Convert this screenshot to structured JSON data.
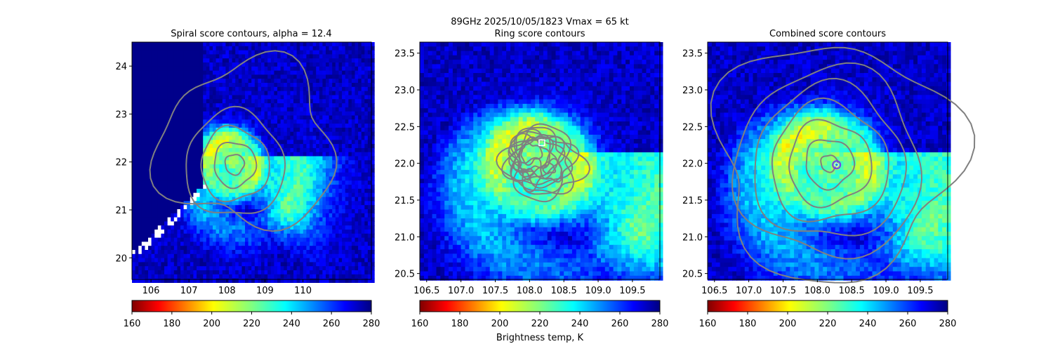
{
  "figure": {
    "suptitle_line1": "89GHz  2025/10/05/1823    Vmax = 65 kt",
    "colorbar_label": "Brightness temp, K"
  },
  "colors": {
    "contour": "#808080",
    "center_marker": "#7b3fe4",
    "center_inner": "#1f9bd8",
    "box_marker": "#ffffff"
  },
  "chart_data": [
    {
      "type": "heatmap",
      "title": "Spiral score contours, alpha = 12.4",
      "xlim": [
        105.5,
        111.8
      ],
      "ylim": [
        19.55,
        24.5
      ],
      "xticks": [
        106,
        107,
        108,
        109,
        110
      ],
      "yticks": [
        20,
        21,
        22,
        23,
        24
      ],
      "colorbar": {
        "cmap": "jet_r",
        "range": [
          160,
          280
        ],
        "ticks": [
          160,
          180,
          200,
          220,
          240,
          260,
          280
        ]
      },
      "storm_center": [
        108.15,
        21.95
      ],
      "contours": "spiral",
      "grid": false
    },
    {
      "type": "heatmap",
      "title": "Ring score contours",
      "xlim": [
        106.4,
        109.9
      ],
      "ylim": [
        20.42,
        23.65
      ],
      "xticks": [
        106.5,
        107.0,
        107.5,
        108.0,
        108.5,
        109.0,
        109.5
      ],
      "yticks": [
        20.5,
        21.0,
        21.5,
        22.0,
        22.5,
        23.0,
        23.5
      ],
      "colorbar": {
        "cmap": "jet_r",
        "range": [
          160,
          280
        ],
        "ticks": [
          160,
          180,
          200,
          220,
          240,
          260,
          280
        ]
      },
      "storm_center": [
        108.15,
        21.95
      ],
      "marker": {
        "shape": "square",
        "x": 108.18,
        "y": 22.28
      },
      "contours": "ring",
      "grid": false
    },
    {
      "type": "heatmap",
      "title": "Combined score contours",
      "xlim": [
        106.4,
        109.9
      ],
      "ylim": [
        20.42,
        23.65
      ],
      "xticks": [
        106.5,
        107.0,
        107.5,
        108.0,
        108.5,
        109.0,
        109.5
      ],
      "yticks": [
        20.5,
        21.0,
        21.5,
        22.0,
        22.5,
        23.0,
        23.5
      ],
      "colorbar": {
        "cmap": "jet_r",
        "range": [
          160,
          280
        ],
        "ticks": [
          160,
          180,
          200,
          220,
          240,
          260,
          280
        ]
      },
      "storm_center": [
        108.15,
        21.95
      ],
      "marker": {
        "shape": "circle",
        "x": 108.28,
        "y": 21.98
      },
      "contours": "combined",
      "grid": false
    }
  ]
}
